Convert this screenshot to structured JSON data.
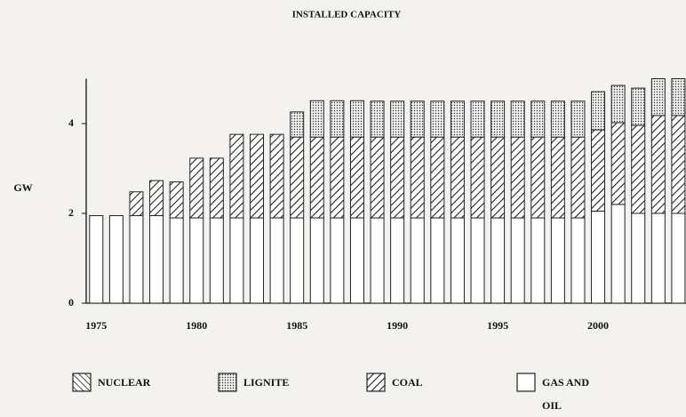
{
  "chart_data": {
    "type": "stacked_bar",
    "title": "INSTALLED CAPACITY",
    "y_label": "GW",
    "x": [
      1975,
      1976,
      1977,
      1978,
      1979,
      1980,
      1981,
      1982,
      1983,
      1984,
      1985,
      1986,
      1987,
      1988,
      1989,
      1990,
      1991,
      1992,
      1993,
      1994,
      1995,
      1996,
      1997,
      1998,
      1999,
      2000,
      2001,
      2002,
      2003,
      2004
    ],
    "xlim": [
      1974.5,
      2005
    ],
    "xticks": [
      1975,
      1980,
      1985,
      1990,
      1995,
      2000
    ],
    "ylim": [
      0,
      5
    ],
    "yticks": [
      0,
      2,
      4
    ],
    "series": [
      {
        "name": "GAS AND OIL",
        "color": "#ffffff",
        "hatch": "none",
        "values": [
          1.95,
          1.95,
          1.95,
          1.95,
          1.9,
          1.9,
          1.9,
          1.9,
          1.9,
          1.9,
          1.9,
          1.9,
          1.9,
          1.9,
          1.9,
          1.9,
          1.9,
          1.9,
          1.9,
          1.9,
          1.9,
          1.9,
          1.9,
          1.9,
          1.9,
          2.05,
          2.2,
          2.0,
          2.0,
          2.0
        ]
      },
      {
        "name": "COAL",
        "color": "#222222",
        "hatch": "diagonal",
        "values": [
          0,
          0,
          0.53,
          0.78,
          0.8,
          1.33,
          1.33,
          1.86,
          1.86,
          1.86,
          1.8,
          1.8,
          1.8,
          1.8,
          1.8,
          1.8,
          1.8,
          1.8,
          1.8,
          1.8,
          1.8,
          1.8,
          1.8,
          1.8,
          1.8,
          1.81,
          1.82,
          1.96,
          2.18,
          2.18
        ]
      },
      {
        "name": "LIGNITE",
        "color": "#222222",
        "hatch": "dots",
        "values": [
          0,
          0,
          0,
          0,
          0,
          0,
          0,
          0,
          0,
          0,
          0.56,
          0.81,
          0.81,
          0.81,
          0.8,
          0.8,
          0.8,
          0.8,
          0.8,
          0.8,
          0.8,
          0.8,
          0.8,
          0.8,
          0.8,
          0.85,
          0.83,
          0.83,
          0.82,
          0.82
        ]
      },
      {
        "name": "NUCLEAR",
        "color": "#222222",
        "hatch": "back-diagonal",
        "values": [
          0,
          0,
          0,
          0,
          0,
          0,
          0,
          0,
          0,
          0,
          0,
          0,
          0,
          0,
          0,
          0,
          0,
          0,
          0,
          0,
          0,
          0,
          0,
          0,
          0,
          0,
          0,
          0,
          0,
          0
        ]
      }
    ]
  }
}
